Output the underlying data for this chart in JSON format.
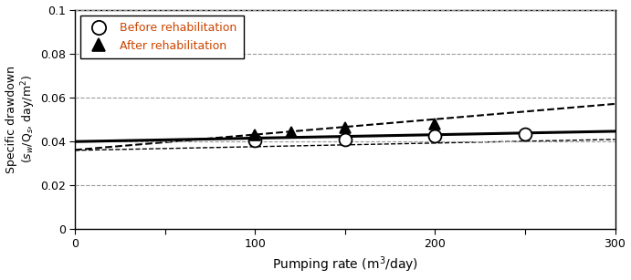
{
  "title": "",
  "xlabel": "Pumping rate (m$^3$/day)",
  "ylabel": "Specific drawdown\n($s_w$/Q$_s$, day/m$^2$)",
  "xlim": [
    0,
    300
  ],
  "ylim": [
    0,
    0.1
  ],
  "yticks": [
    0,
    0.02,
    0.04,
    0.06,
    0.08,
    0.1
  ],
  "xticks": [
    0,
    50,
    100,
    150,
    200,
    250,
    300
  ],
  "xtick_labels": [
    "0",
    "",
    "100",
    "",
    "200",
    "",
    "300"
  ],
  "before_points_x": [
    100,
    150,
    200,
    250
  ],
  "before_points_y": [
    0.0402,
    0.0408,
    0.0425,
    0.0432
  ],
  "after_points_x": [
    100,
    120,
    150,
    200
  ],
  "after_points_y": [
    0.043,
    0.044,
    0.046,
    0.048
  ],
  "before_line_x": [
    0,
    300
  ],
  "before_line_y": [
    0.0398,
    0.0445
  ],
  "after_center_line_x": [
    0,
    300
  ],
  "after_center_line_y": [
    0.036,
    0.057
  ],
  "after_lower_line_x": [
    0,
    300
  ],
  "after_lower_line_y": [
    0.0358,
    0.0408
  ],
  "before_color": "#000000",
  "after_color": "#000000",
  "grid_color": "#999999",
  "background_color": "#ffffff",
  "legend_text_color": "#cc4400",
  "legend_before": "Before rehabilitation",
  "legend_after": "After rehabilitation"
}
